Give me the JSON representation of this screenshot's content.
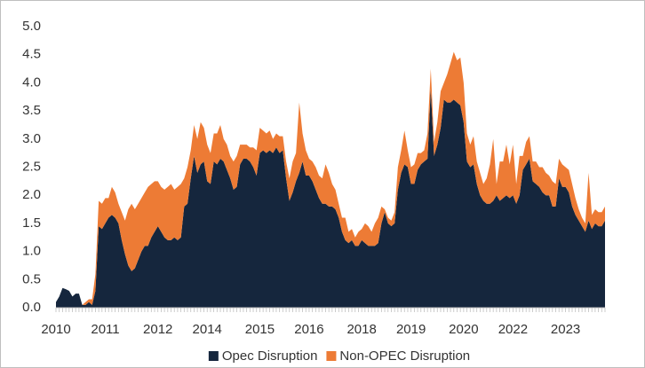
{
  "chart_data": {
    "type": "stacked_area",
    "categories": [
      "2010",
      null,
      null,
      null,
      null,
      null,
      null,
      null,
      null,
      null,
      null,
      null,
      null,
      null,
      null,
      "2011",
      null,
      null,
      null,
      null,
      null,
      null,
      null,
      null,
      null,
      null,
      null,
      null,
      null,
      null,
      null,
      "2012",
      null,
      null,
      null,
      null,
      null,
      null,
      null,
      null,
      null,
      null,
      null,
      null,
      null,
      null,
      "2014",
      null,
      null,
      null,
      null,
      null,
      null,
      null,
      null,
      null,
      null,
      null,
      null,
      null,
      null,
      null,
      "2015",
      null,
      null,
      null,
      null,
      null,
      null,
      null,
      null,
      null,
      null,
      null,
      null,
      null,
      null,
      "2016",
      null,
      null,
      null,
      null,
      null,
      null,
      null,
      null,
      null,
      null,
      null,
      null,
      null,
      null,
      null,
      "2018",
      null,
      null,
      null,
      null,
      null,
      null,
      null,
      null,
      null,
      null,
      null,
      null,
      null,
      null,
      "2019",
      null,
      null,
      null,
      null,
      null,
      null,
      null,
      null,
      null,
      null,
      null,
      null,
      null,
      null,
      null,
      "2020",
      null,
      null,
      null,
      null,
      null,
      null,
      null,
      null,
      null,
      null,
      null,
      null,
      null,
      null,
      "2022",
      null,
      null,
      null,
      null,
      null,
      null,
      null,
      null,
      null,
      null,
      null,
      null,
      null,
      null,
      null,
      "2023",
      null,
      null,
      null,
      null,
      null,
      null,
      null,
      null,
      null,
      null,
      null,
      null
    ],
    "series": [
      {
        "name": "Opec Disruption",
        "color": "#15263d",
        "values": [
          0.1,
          0.2,
          0.35,
          0.33,
          0.3,
          0.2,
          0.25,
          0.25,
          0.05,
          0.05,
          0.1,
          0.05,
          0.3,
          1.45,
          1.4,
          1.5,
          1.6,
          1.65,
          1.6,
          1.5,
          1.2,
          0.95,
          0.75,
          0.65,
          0.7,
          0.85,
          1.0,
          1.1,
          1.1,
          1.25,
          1.35,
          1.45,
          1.35,
          1.25,
          1.2,
          1.2,
          1.25,
          1.2,
          1.25,
          1.8,
          1.85,
          2.3,
          2.7,
          2.4,
          2.55,
          2.6,
          2.25,
          2.2,
          2.6,
          2.55,
          2.65,
          2.6,
          2.45,
          2.3,
          2.1,
          2.15,
          2.55,
          2.65,
          2.65,
          2.6,
          2.5,
          2.35,
          2.75,
          2.8,
          2.75,
          2.8,
          2.75,
          2.85,
          2.75,
          2.8,
          2.3,
          1.9,
          2.05,
          2.25,
          2.4,
          2.6,
          2.35,
          2.35,
          2.25,
          2.1,
          1.95,
          1.85,
          1.85,
          1.8,
          1.8,
          1.75,
          1.6,
          1.35,
          1.2,
          1.15,
          1.2,
          1.1,
          1.1,
          1.2,
          1.15,
          1.1,
          1.1,
          1.1,
          1.15,
          1.5,
          1.7,
          1.5,
          1.45,
          1.5,
          2.1,
          2.4,
          2.55,
          2.5,
          2.2,
          2.2,
          2.45,
          2.55,
          2.6,
          2.65,
          3.9,
          2.7,
          2.9,
          3.2,
          3.7,
          3.65,
          3.65,
          3.7,
          3.65,
          3.6,
          3.3,
          2.6,
          2.5,
          2.55,
          2.2,
          2.0,
          1.9,
          1.85,
          1.85,
          1.9,
          2.0,
          1.9,
          1.95,
          2.0,
          1.95,
          2.0,
          1.85,
          2.0,
          2.45,
          2.55,
          2.65,
          2.25,
          2.2,
          2.15,
          2.05,
          2.0,
          2.0,
          1.8,
          1.8,
          2.3,
          2.15,
          2.15,
          2.05,
          1.8,
          1.65,
          1.55,
          1.45,
          1.35,
          1.55,
          1.4,
          1.5,
          1.45,
          1.45,
          1.55
        ]
      },
      {
        "name": "Non-OPEC Disruption",
        "color": "#ed7b35",
        "values": [
          0,
          0,
          0,
          0,
          0,
          0,
          0,
          0,
          0,
          0.05,
          0.05,
          0.1,
          0.3,
          0.45,
          0.45,
          0.45,
          0.35,
          0.5,
          0.45,
          0.35,
          0.5,
          0.6,
          1.0,
          1.2,
          1.05,
          1.0,
          0.95,
          0.95,
          1.05,
          0.95,
          0.9,
          0.8,
          0.8,
          0.85,
          0.95,
          1.0,
          0.85,
          0.95,
          0.95,
          0.5,
          0.65,
          0.5,
          0.55,
          0.6,
          0.75,
          0.6,
          0.65,
          0.55,
          0.5,
          0.55,
          0.6,
          0.4,
          0.45,
          0.4,
          0.5,
          0.55,
          0.35,
          0.25,
          0.25,
          0.25,
          0.35,
          0.45,
          0.45,
          0.35,
          0.35,
          0.35,
          0.25,
          0.25,
          0.3,
          0.25,
          0.3,
          0.4,
          0.55,
          0.5,
          1.25,
          0.5,
          0.45,
          0.3,
          0.35,
          0.4,
          0.4,
          0.45,
          0.7,
          0.6,
          0.4,
          0.35,
          0.25,
          0.25,
          0.4,
          0.2,
          0.2,
          0.15,
          0.25,
          0.2,
          0.35,
          0.35,
          0.25,
          0.4,
          0.45,
          0.3,
          0.05,
          0.1,
          0.1,
          0.2,
          0.4,
          0.4,
          0.6,
          0.3,
          0.3,
          0.35,
          0.3,
          0.2,
          0.2,
          0.45,
          0.35,
          0.25,
          0.4,
          0.65,
          0.3,
          0.5,
          0.7,
          0.85,
          0.75,
          0.85,
          0.7,
          0.5,
          0.4,
          0.5,
          0.4,
          0.4,
          0.3,
          0.45,
          0.7,
          1.1,
          0.2,
          0.7,
          0.65,
          0.9,
          0.6,
          0.9,
          0.35,
          0.7,
          0.25,
          0.4,
          0.4,
          0.35,
          0.4,
          0.35,
          0.45,
          0.4,
          0.35,
          0.45,
          0.4,
          0.35,
          0.4,
          0.35,
          0.4,
          0.4,
          0.3,
          0.2,
          0.15,
          0.15,
          0.85,
          0.25,
          0.25,
          0.25,
          0.25,
          0.25
        ]
      }
    ],
    "ylim": [
      0,
      5
    ],
    "yticks": [
      {
        "value": 0,
        "label": "0.0"
      },
      0.5,
      {
        "value": 1,
        "label": "1.0"
      },
      1.5,
      {
        "value": 2,
        "label": "2.0"
      },
      2.5,
      {
        "value": 3,
        "label": "3.0"
      },
      3.5,
      {
        "value": 4,
        "label": "4.0"
      },
      4.5,
      {
        "value": 5,
        "label": "5.0"
      }
    ],
    "legend": "bottom"
  }
}
